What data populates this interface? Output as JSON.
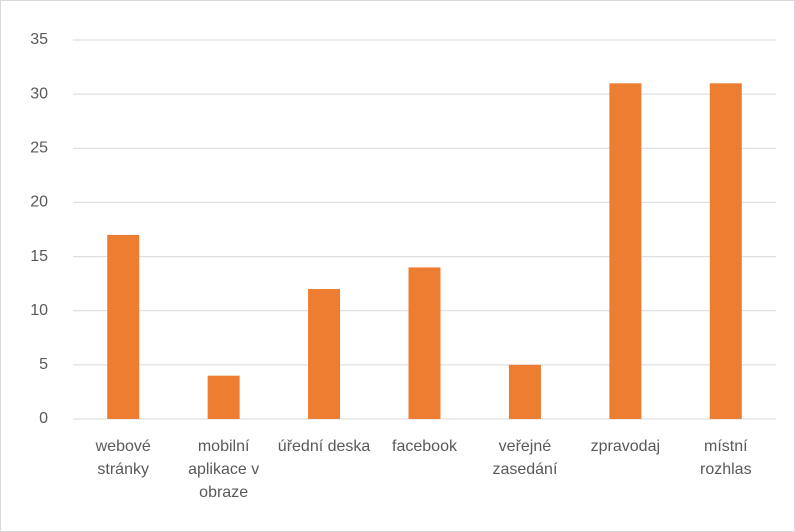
{
  "chart_data": {
    "type": "bar",
    "categories": [
      "webové stránky",
      "mobilní aplikace v obraze",
      "úřední deska",
      "facebook",
      "veřejné zasedání",
      "zpravodaj",
      "místní rozhlas"
    ],
    "values": [
      17,
      4,
      12,
      14,
      5,
      31,
      31
    ],
    "color": "#ed7d31",
    "ylim": [
      0,
      35
    ],
    "yticks": [
      0,
      5,
      10,
      15,
      20,
      25,
      30,
      35
    ],
    "grid": true
  }
}
